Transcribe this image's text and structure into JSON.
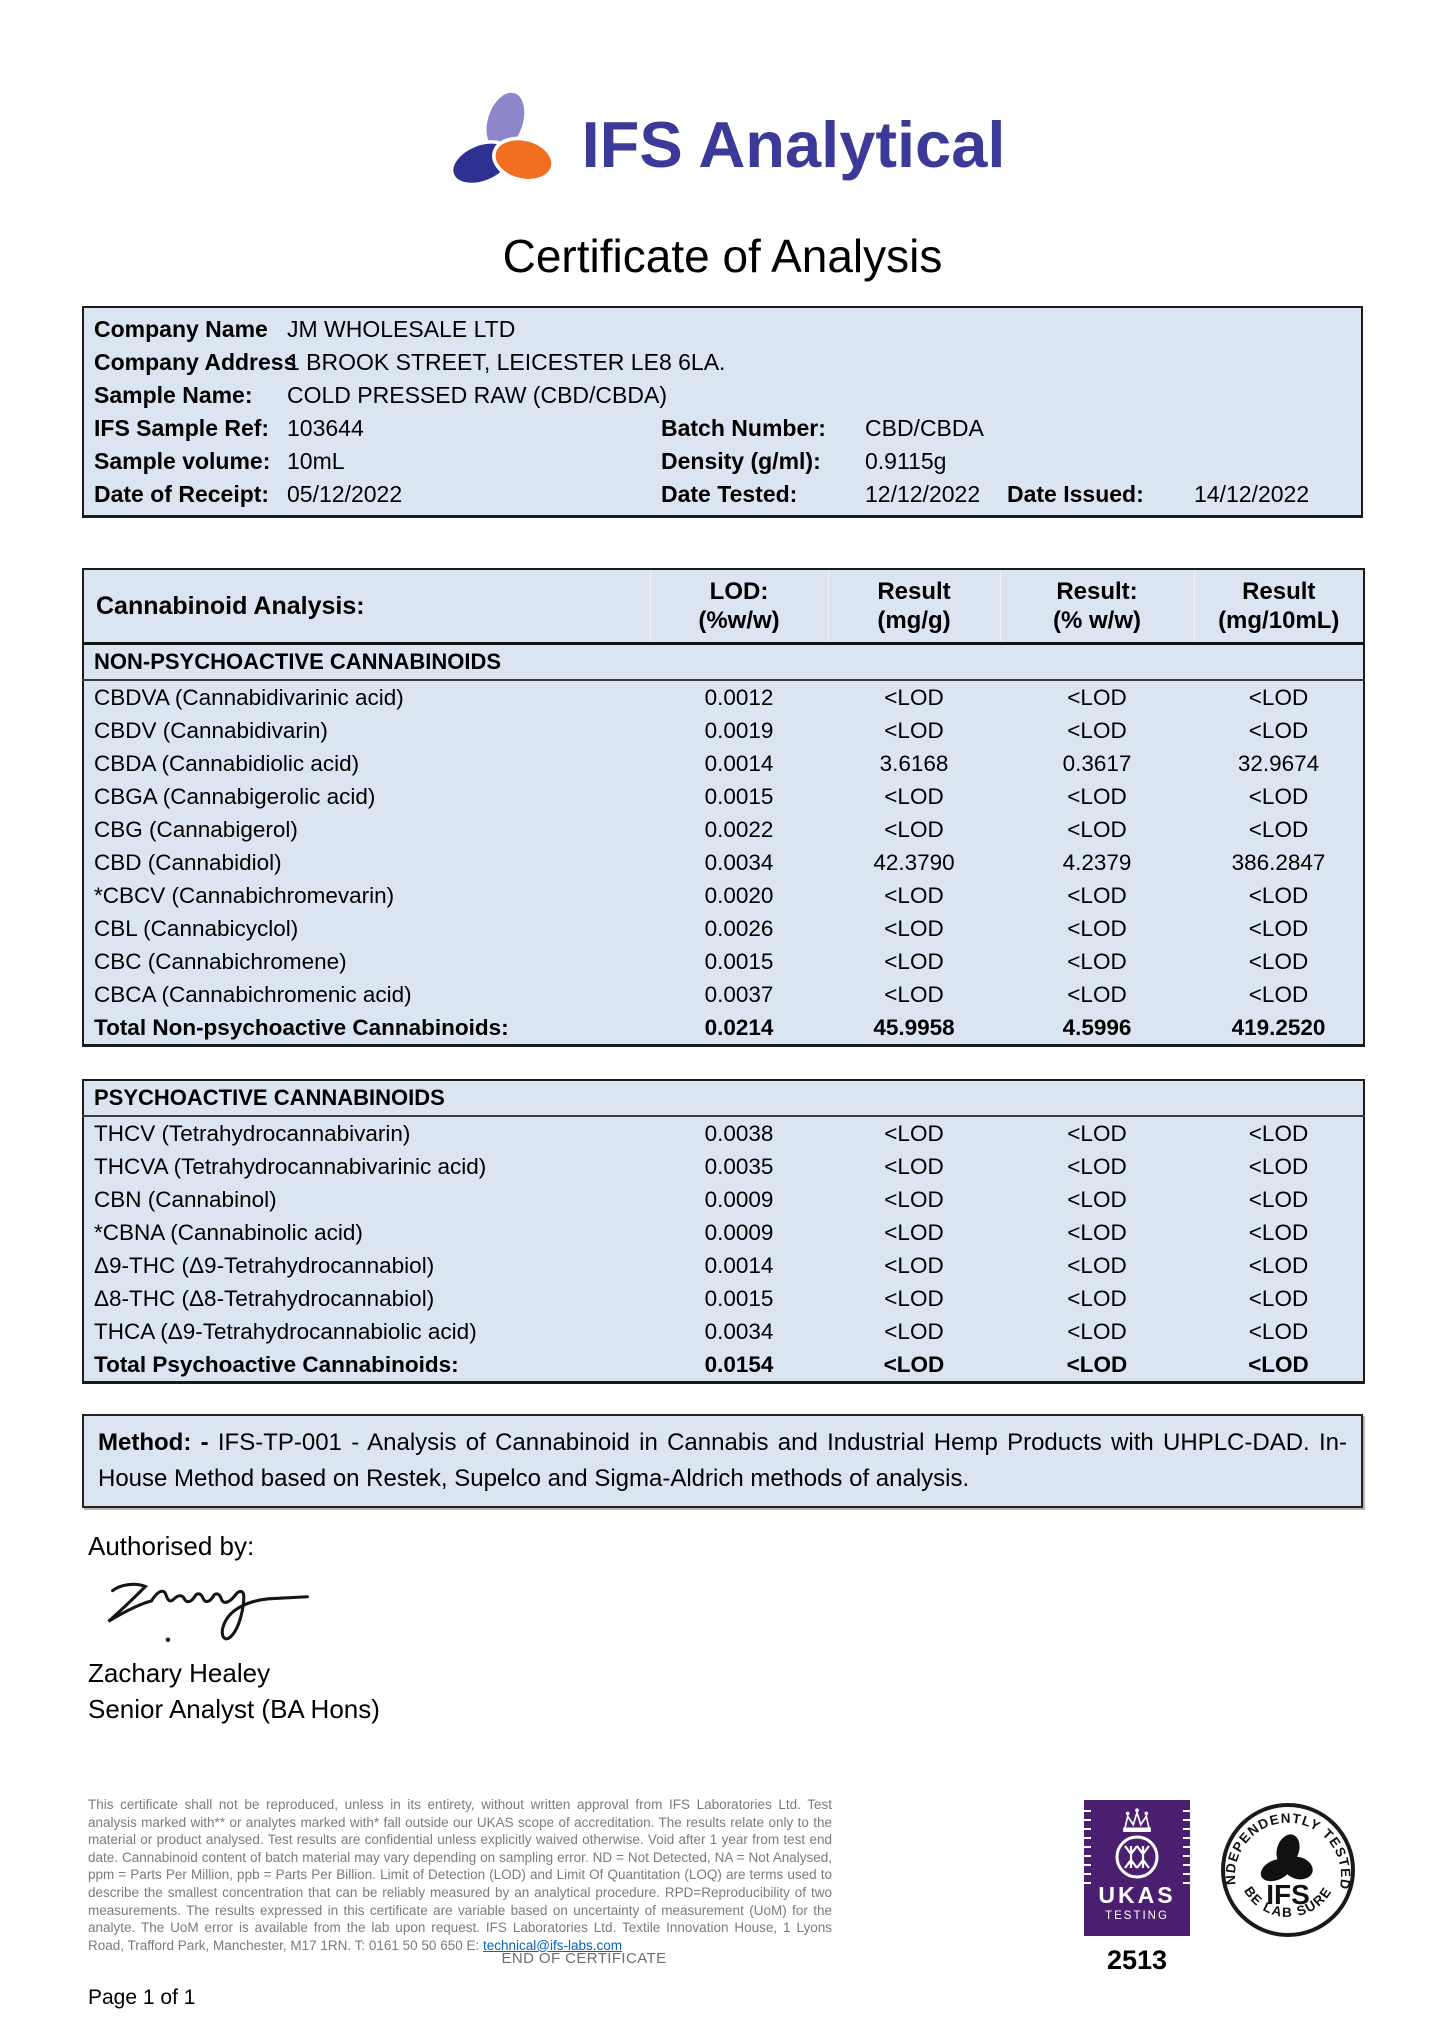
{
  "logo": {
    "text": "IFS Analytical"
  },
  "title": "Certificate of Analysis",
  "colors": {
    "brand_blue": "#3b3a98",
    "logo_navy": "#2e3192",
    "logo_lilac": "#8d86c9",
    "logo_orange": "#f26f21",
    "table_bg": "#dbe5f1",
    "ukas_purple": "#4b1f70",
    "link_blue": "#0563c1",
    "footer_gray": "#7b7b7b"
  },
  "info": {
    "rows": [
      {
        "label": "Company Name",
        "value": "JM WHOLESALE LTD"
      },
      {
        "label": "Company Address",
        "value": "1 BROOK STREET, LEICESTER LE8 6LA."
      },
      {
        "label": "Sample Name:",
        "value": "COLD PRESSED RAW (CBD/CBDA)"
      },
      {
        "label": "IFS Sample Ref:",
        "value": "103644",
        "label2": "Batch Number:",
        "value2": "CBD/CBDA"
      },
      {
        "label": "Sample volume:",
        "value": "10mL",
        "label2": "Density (g/ml):",
        "value2": "0.9115g"
      },
      {
        "label": "Date of Receipt:",
        "value": "05/12/2022",
        "label2": "Date Tested:",
        "value2": "12/12/2022",
        "label3": "Date Issued:",
        "value3": "14/12/2022"
      }
    ]
  },
  "analysis": {
    "title": "Cannabinoid Analysis:",
    "columns": [
      {
        "l1": "LOD:",
        "l2": "(%w/w)"
      },
      {
        "l1": "Result",
        "l2": "(mg/g)"
      },
      {
        "l1": "Result:",
        "l2": "(% w/w)"
      },
      {
        "l1": "Result",
        "l2": "(mg/10mL)"
      }
    ],
    "sections": [
      {
        "name": "NON-PSYCHOACTIVE CANNABINOIDS",
        "rows": [
          [
            "CBDVA (Cannabidivarinic acid)",
            "0.0012",
            "<LOD",
            "<LOD",
            "<LOD"
          ],
          [
            "CBDV (Cannabidivarin)",
            "0.0019",
            "<LOD",
            "<LOD",
            "<LOD"
          ],
          [
            "CBDA (Cannabidiolic acid)",
            "0.0014",
            "3.6168",
            "0.3617",
            "32.9674"
          ],
          [
            "CBGA (Cannabigerolic acid)",
            "0.0015",
            "<LOD",
            "<LOD",
            "<LOD"
          ],
          [
            "CBG (Cannabigerol)",
            "0.0022",
            "<LOD",
            "<LOD",
            "<LOD"
          ],
          [
            "CBD (Cannabidiol)",
            "0.0034",
            "42.3790",
            "4.2379",
            "386.2847"
          ],
          [
            "*CBCV (Cannabichromevarin)",
            "0.0020",
            "<LOD",
            "<LOD",
            "<LOD"
          ],
          [
            "CBL (Cannabicyclol)",
            "0.0026",
            "<LOD",
            "<LOD",
            "<LOD"
          ],
          [
            "CBC (Cannabichromene)",
            "0.0015",
            "<LOD",
            "<LOD",
            "<LOD"
          ],
          [
            "CBCA (Cannabichromenic acid)",
            "0.0037",
            "<LOD",
            "<LOD",
            "<LOD"
          ]
        ],
        "total": [
          "Total Non-psychoactive Cannabinoids:",
          "0.0214",
          "45.9958",
          "4.5996",
          "419.2520"
        ]
      },
      {
        "name": "PSYCHOACTIVE CANNABINOIDS",
        "rows": [
          [
            "THCV (Tetrahydrocannabivarin)",
            "0.0038",
            "<LOD",
            "<LOD",
            "<LOD"
          ],
          [
            "THCVA (Tetrahydrocannabivarinic acid)",
            "0.0035",
            "<LOD",
            "<LOD",
            "<LOD"
          ],
          [
            "CBN (Cannabinol)",
            "0.0009",
            "<LOD",
            "<LOD",
            "<LOD"
          ],
          [
            "*CBNA (Cannabinolic acid)",
            "0.0009",
            "<LOD",
            "<LOD",
            "<LOD"
          ],
          [
            "Δ9-THC (Δ9-Tetrahydrocannabiol)",
            "0.0014",
            "<LOD",
            "<LOD",
            "<LOD"
          ],
          [
            "Δ8-THC (Δ8-Tetrahydrocannabiol)",
            "0.0015",
            "<LOD",
            "<LOD",
            "<LOD"
          ],
          [
            "THCA (Δ9-Tetrahydrocannabiolic acid)",
            "0.0034",
            "<LOD",
            "<LOD",
            "<LOD"
          ]
        ],
        "total": [
          "Total Psychoactive Cannabinoids:",
          "0.0154",
          "<LOD",
          "<LOD",
          "<LOD"
        ]
      }
    ]
  },
  "method": {
    "label": "Method: -",
    "text": " IFS-TP-001 - Analysis of Cannabinoid in Cannabis and Industrial Hemp Products with UHPLC-DAD. In-House Method based on Restek, Supelco and Sigma-Aldrich methods of analysis."
  },
  "authorised": {
    "label": "Authorised by:",
    "name": "Zachary Healey",
    "role": "Senior Analyst (BA Hons)"
  },
  "footer": {
    "disclaimer": "This certificate shall not be reproduced, unless in its entirety, without written approval from IFS Laboratories Ltd. Test analysis marked with** or analytes marked with* fall outside our UKAS scope of accreditation.  The results relate only to the material or product analysed. Test results are confidential unless explicitly waived otherwise. Void after 1 year from test end date. Cannabinoid content of batch material may vary depending on sampling error. ND = Not Detected, NA = Not Analysed, ppm = Parts Per Million, ppb = Parts Per Billion. Limit of Detection (LOD) and Limit Of Quantitation (LOQ) are terms used to describe the smallest concentration that can be reliably measured by an analytical procedure. RPD=Reproducibility of two measurements. The results expressed in this certificate are variable based on uncertainty of measurement (UoM) for the analyte. The UoM error is available from the lab upon request. IFS Laboratories Ltd. Textile Innovation House, 1 Lyons Road, Trafford Park, Manchester, M17 1RN. T: 0161 50 50 650 E: ",
    "email": "technical@ifs-labs.com",
    "end_text": "END OF CERTIFICATE",
    "page_text": "Page 1 of 1",
    "ukas": {
      "name": "UKAS",
      "sub": "TESTING",
      "number": "2513"
    },
    "stamp": {
      "top": "INDEPENDENTLY TESTED",
      "bottom": "BE LAB SURE",
      "center": "IFS"
    }
  }
}
